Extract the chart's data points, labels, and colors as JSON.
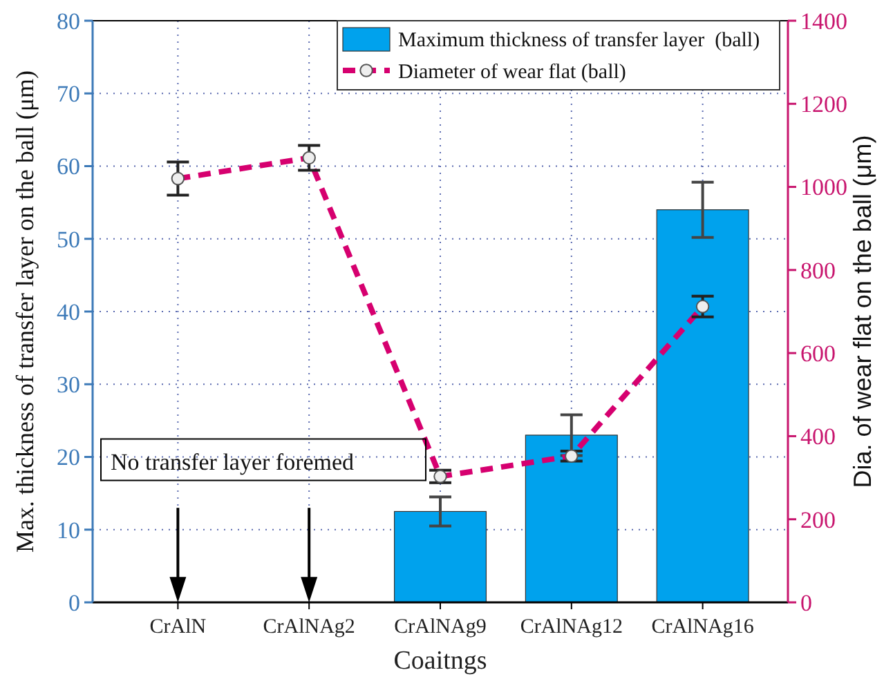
{
  "chart_data": {
    "type": "bar",
    "xlabel": "Coaitngs",
    "ylabel": "Max. thickness of transfer layer on the ball (μm)",
    "y2label": "Dia. of wear flat on the ball (μm)",
    "categories": [
      "CrAlN",
      "CrAlNAg2",
      "CrAlNAg9",
      "CrAlNAg12",
      "CrAlNAg16"
    ],
    "series": [
      {
        "name": "Maximum thickness of transfer layer  (ball)",
        "color": "#00a2ed",
        "values": [
          null,
          null,
          12.5,
          23,
          54
        ],
        "errors": [
          null,
          null,
          2,
          2.8,
          3.8
        ]
      },
      {
        "name": "Diameter of wear flat (ball)",
        "type": "line",
        "axis": "y2",
        "color": "#d6006f",
        "values": [
          1020,
          1070,
          303,
          352,
          712
        ],
        "errors": [
          40,
          30,
          15,
          12,
          25
        ]
      }
    ],
    "ylim": [
      0,
      80
    ],
    "yticks": [
      0,
      10,
      20,
      30,
      40,
      50,
      60,
      70,
      80
    ],
    "y2lim": [
      0,
      1400
    ],
    "y2ticks": [
      0,
      200,
      400,
      600,
      800,
      1000,
      1200,
      1400
    ],
    "grid": true,
    "legend": "top right",
    "marker": "circle",
    "line_style": "dashed",
    "annotations": [
      "No transfer layer foremed"
    ]
  }
}
